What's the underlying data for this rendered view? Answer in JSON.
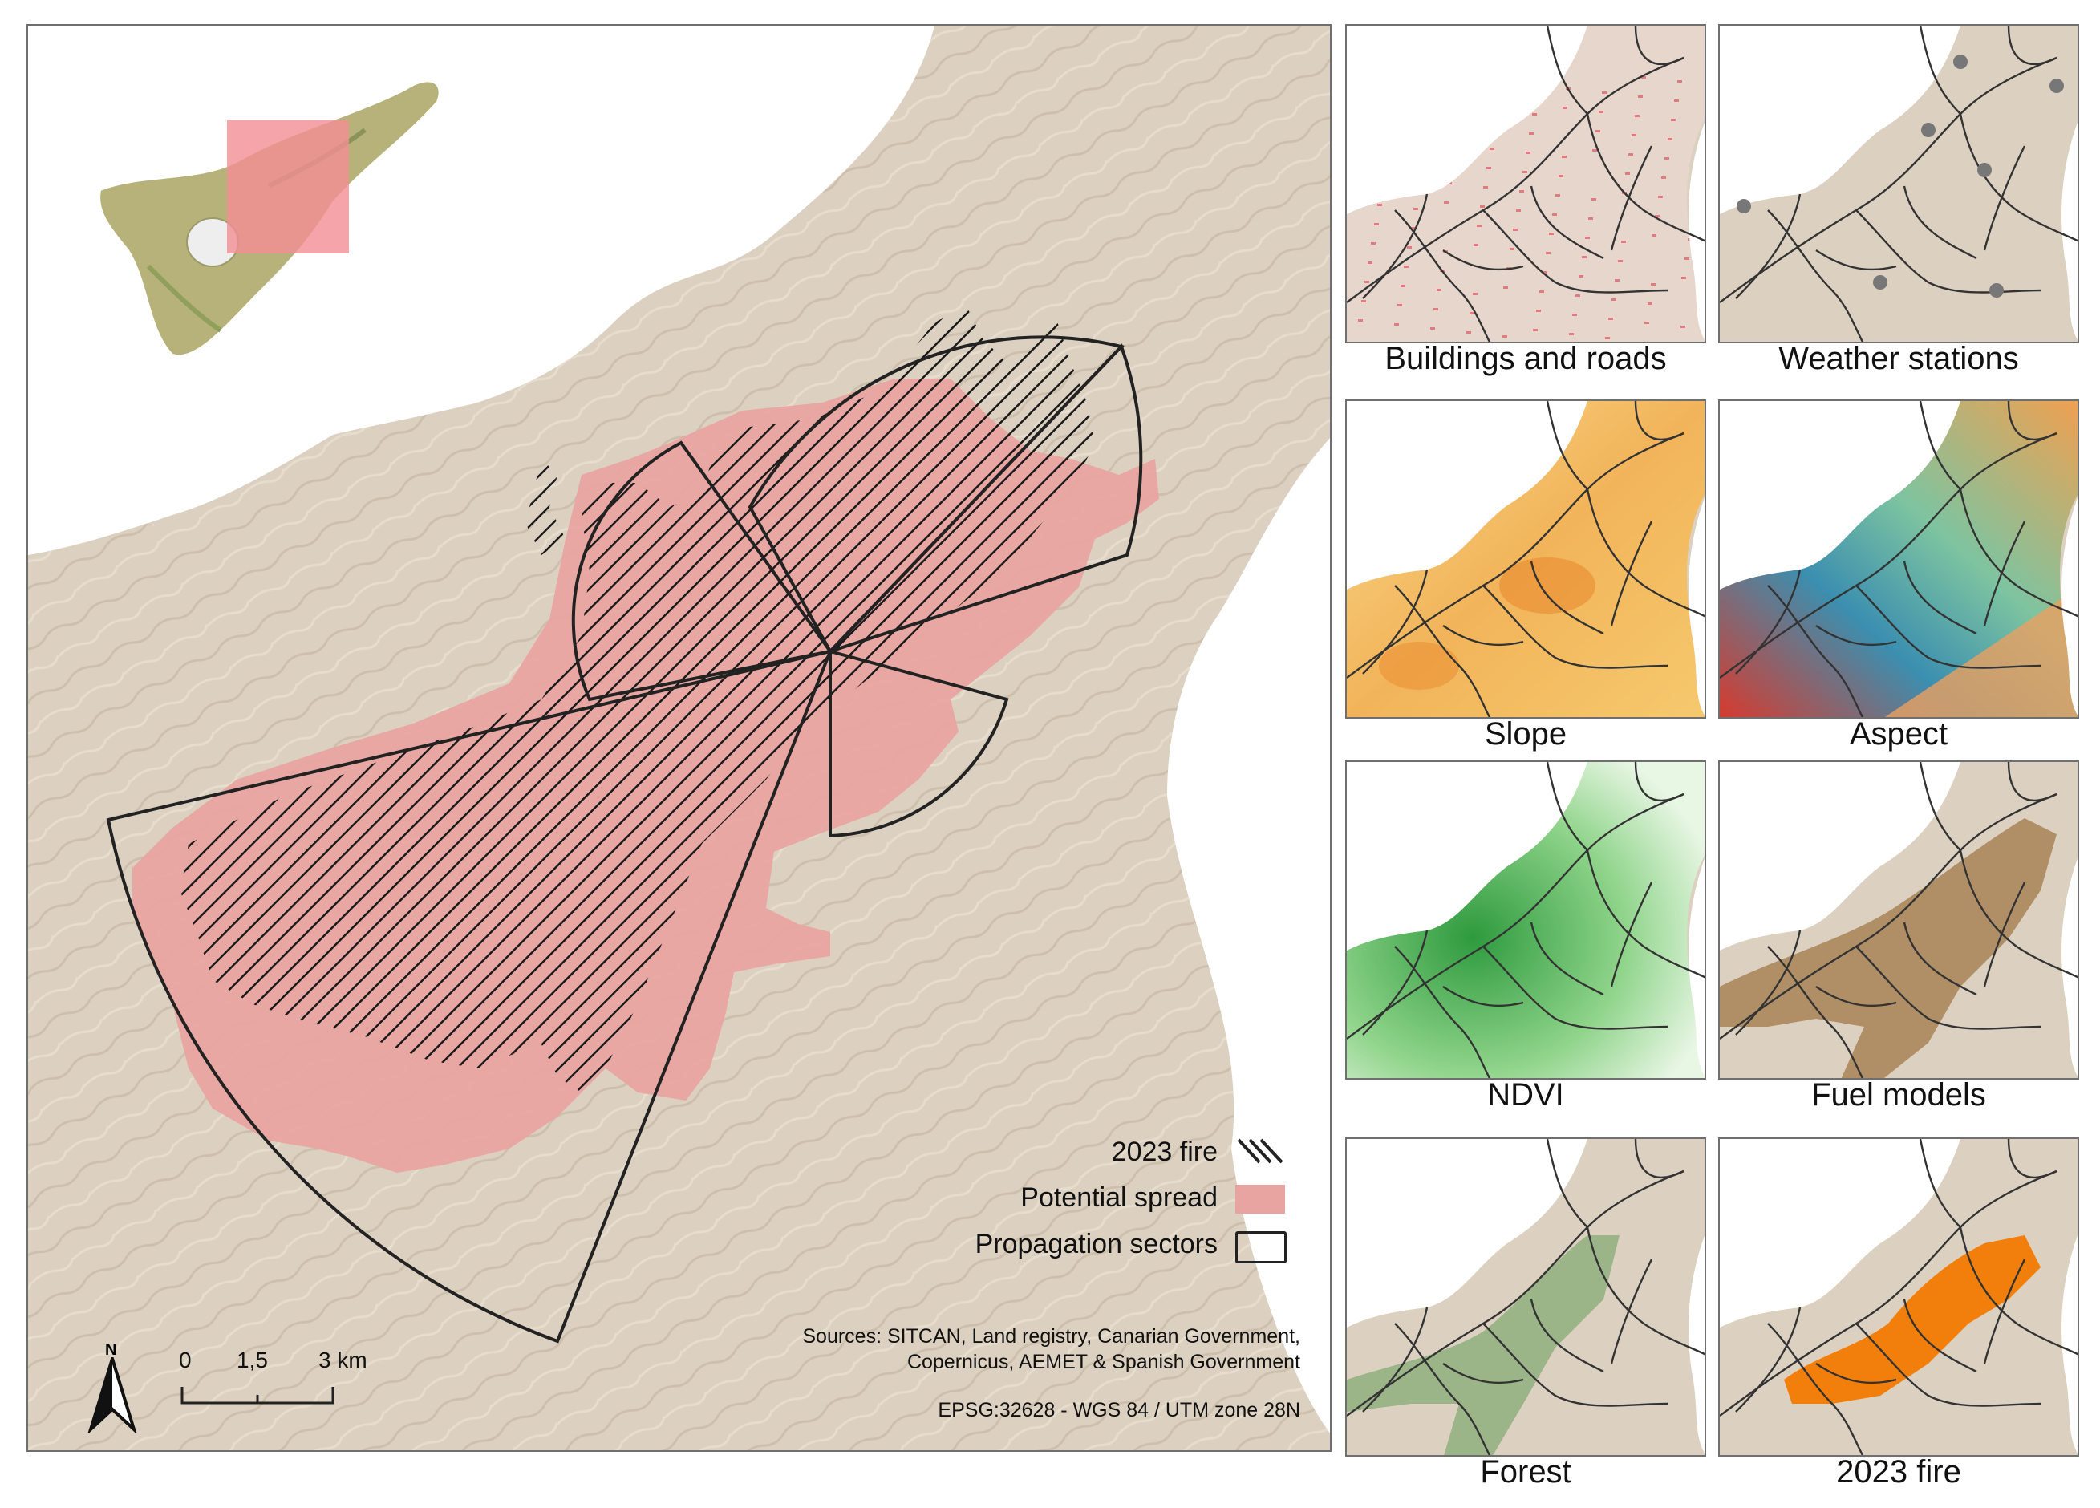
{
  "main_map": {
    "legend": {
      "fire_2023": "2023 fire",
      "potential_spread": "Potential spread",
      "propagation_sectors": "Propagation sectors"
    },
    "scale_bar": {
      "ticks": [
        "0",
        "1,5",
        "3 km"
      ]
    },
    "north_label": "N",
    "sources_line1": "Sources: SITCAN, Land registry, Canarian Government,",
    "sources_line2": "Copernicus, AEMET & Spanish Government",
    "crs": "EPSG:32628 - WGS 84 / UTM zone 28N",
    "colors": {
      "terrain": "#dcd1c1",
      "sea": "#ffffff",
      "potential_spread": "#e8a4a0",
      "locator_box": "#f28d93",
      "sector_outline": "#222222"
    }
  },
  "panels": [
    {
      "label": "Buildings and roads",
      "theme": "buildings"
    },
    {
      "label": "Weather stations",
      "theme": "stations"
    },
    {
      "label": "Slope",
      "theme": "slope"
    },
    {
      "label": "Aspect",
      "theme": "aspect"
    },
    {
      "label": "NDVI",
      "theme": "ndvi"
    },
    {
      "label": "Fuel models",
      "theme": "fuel"
    },
    {
      "label": "Forest",
      "theme": "forest"
    },
    {
      "label": "2023 fire",
      "theme": "fire"
    }
  ]
}
